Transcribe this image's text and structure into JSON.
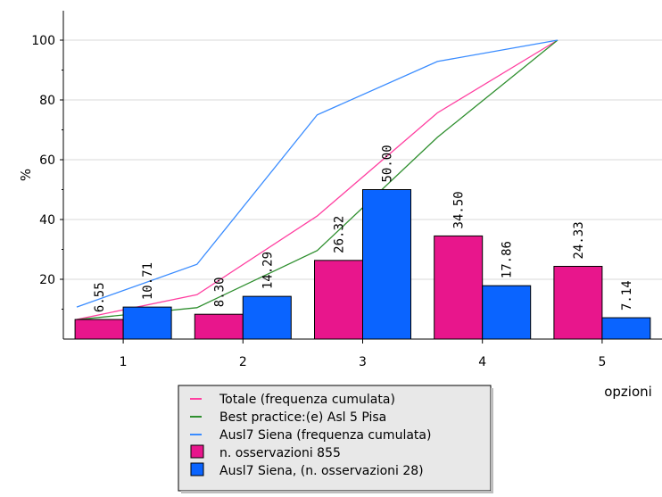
{
  "chart_data": {
    "type": "bar",
    "ylabel": "%",
    "xlabel": "opzioni",
    "categories": [
      "1",
      "2",
      "3",
      "4",
      "5"
    ],
    "y_ticks": [
      20,
      40,
      60,
      80,
      100
    ],
    "ylim": [
      0,
      100
    ],
    "grid": true,
    "legend_position": "bottom-center",
    "bar_series": [
      {
        "name": "n. osservazioni 855",
        "color": "#e8168c",
        "values": [
          6.55,
          8.3,
          26.32,
          34.5,
          24.33
        ],
        "labels": [
          "6.55",
          "8.30",
          "26.32",
          "34.50",
          "24.33"
        ]
      },
      {
        "name": "Ausl7 Siena, (n. osservazioni 28)",
        "color": "#0a64ff",
        "values": [
          10.71,
          14.29,
          50.0,
          17.86,
          7.14
        ],
        "labels": [
          "10.71",
          "14.29",
          "50.00",
          "17.86",
          "7.14"
        ]
      }
    ],
    "line_series": [
      {
        "name": "Totale (frequenza cumulata)",
        "color": "#ff3fa0",
        "values": [
          6.55,
          14.85,
          41.17,
          75.67,
          100
        ]
      },
      {
        "name": "Best practice:(e) Asl 5 Pisa",
        "color": "#2f8f2f",
        "values": [
          6.5,
          10.5,
          29.6,
          67.5,
          100
        ]
      },
      {
        "name": "Ausl7 Siena (frequenza cumulata)",
        "color": "#3a8cff",
        "values": [
          10.71,
          25.0,
          75.0,
          92.86,
          100
        ]
      }
    ]
  }
}
